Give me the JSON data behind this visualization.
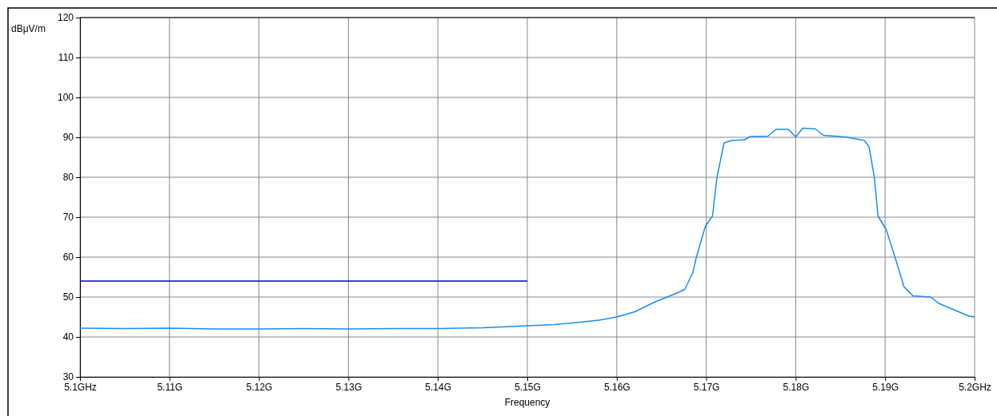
{
  "chart_data": {
    "type": "line",
    "xlabel": "Frequency",
    "ylabel": "dBμV/m",
    "xlim": [
      5.1,
      5.2
    ],
    "ylim": [
      30,
      120
    ],
    "xticks": [
      {
        "value": 5.1,
        "label": "5.1GHz"
      },
      {
        "value": 5.11,
        "label": "5.11G"
      },
      {
        "value": 5.12,
        "label": "5.12G"
      },
      {
        "value": 5.13,
        "label": "5.13G"
      },
      {
        "value": 5.14,
        "label": "5.14G"
      },
      {
        "value": 5.15,
        "label": "5.15G"
      },
      {
        "value": 5.16,
        "label": "5.16G"
      },
      {
        "value": 5.17,
        "label": "5.17G"
      },
      {
        "value": 5.18,
        "label": "5.18G"
      },
      {
        "value": 5.19,
        "label": "5.19G"
      },
      {
        "value": 5.2,
        "label": "5.2GHz"
      }
    ],
    "yticks": [
      30,
      40,
      50,
      60,
      70,
      80,
      90,
      100,
      110,
      120
    ],
    "grid": true,
    "line_style": "solid",
    "series": [
      {
        "color": "#1a8cf0",
        "x": [
          5.1,
          5.105,
          5.11,
          5.115,
          5.12,
          5.125,
          5.13,
          5.135,
          5.14,
          5.145,
          5.15,
          5.153,
          5.155,
          5.158,
          5.16,
          5.162,
          5.1642,
          5.1665,
          5.1676,
          5.1685,
          5.1689,
          5.1699,
          5.1707,
          5.1712,
          5.172,
          5.1728,
          5.1743,
          5.1749,
          5.1769,
          5.1778,
          5.1792,
          5.18,
          5.1808,
          5.1822,
          5.1831,
          5.1856,
          5.1877,
          5.1882,
          5.1888,
          5.1892,
          5.1901,
          5.1911,
          5.1921,
          5.1931,
          5.1951,
          5.196,
          5.1994,
          5.2
        ],
        "values": [
          42.2,
          42.1,
          42.2,
          42,
          42,
          42.1,
          42,
          42.1,
          42.1,
          42.3,
          42.8,
          43.1,
          43.5,
          44.2,
          45,
          46.3,
          48.7,
          50.8,
          51.9,
          56.1,
          60,
          67.7,
          70.3,
          80,
          88.6,
          89.2,
          89.4,
          90.2,
          90.3,
          92,
          92,
          90.1,
          92.3,
          92.1,
          90.5,
          90.1,
          89.2,
          87.6,
          79.9,
          70.3,
          67,
          60,
          52.6,
          50.3,
          50,
          48.4,
          45.2,
          45
        ]
      },
      {
        "color": "#0000c0",
        "x": [
          5.1,
          5.15
        ],
        "values": [
          54,
          54
        ]
      }
    ]
  }
}
